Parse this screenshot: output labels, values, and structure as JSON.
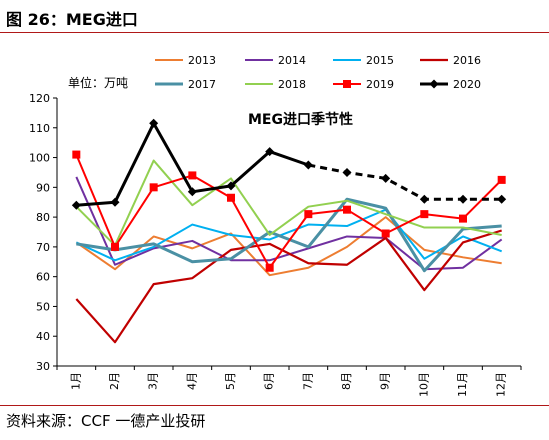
{
  "figure": {
    "title": "图 26：MEG进口",
    "source": "资料来源：CCF 一德产业投研"
  },
  "chart_data": {
    "type": "line",
    "title": "MEG进口季节性",
    "unit_label": "单位：万吨",
    "categories": [
      "1月",
      "2月",
      "3月",
      "4月",
      "5月",
      "6月",
      "7月",
      "8月",
      "9月",
      "10月",
      "11月",
      "12月"
    ],
    "ylim": [
      30,
      120
    ],
    "yticks": [
      30,
      40,
      50,
      60,
      70,
      80,
      90,
      100,
      110,
      120
    ],
    "legend_position": "top",
    "series": [
      {
        "name": "2013",
        "color": "#ed7d31",
        "width": 2,
        "values": [
          71.5,
          62.5,
          73.5,
          69.5,
          74.5,
          60.5,
          63,
          70,
          80,
          69,
          66.5,
          64.5
        ]
      },
      {
        "name": "2014",
        "color": "#7030a0",
        "width": 2,
        "values": [
          93.5,
          64,
          69.5,
          72,
          65.5,
          65.5,
          69.5,
          73.5,
          73,
          62.5,
          63,
          72.5
        ]
      },
      {
        "name": "2015",
        "color": "#00b0f0",
        "width": 2,
        "values": [
          71.5,
          65.5,
          70,
          77.5,
          74,
          72.5,
          77.5,
          77,
          82.5,
          66,
          73.5,
          68.5
        ]
      },
      {
        "name": "2016",
        "color": "#c00000",
        "width": 2.2,
        "values": [
          52.5,
          38,
          57.5,
          59.5,
          69,
          71,
          64.5,
          64,
          73,
          55.5,
          71.5,
          75.5
        ]
      },
      {
        "name": "2017",
        "color": "#4a90a4",
        "width": 3,
        "values": [
          71,
          69,
          71,
          65,
          66,
          75,
          70,
          86,
          83,
          62,
          76,
          77
        ]
      },
      {
        "name": "2018",
        "color": "#92d050",
        "width": 2,
        "values": [
          83.5,
          70.5,
          99,
          84,
          93,
          74,
          83.5,
          85.5,
          81,
          76.5,
          76.5,
          74
        ]
      },
      {
        "name": "2019",
        "color": "#ff0000",
        "width": 2,
        "marker": "square",
        "values": [
          101,
          70,
          90,
          94,
          86.5,
          63,
          81,
          82.5,
          74.5,
          81,
          79.5,
          92.5
        ]
      },
      {
        "name": "2020",
        "color": "#000000",
        "width": 3,
        "marker": "diamond",
        "dashed_from_index": 6,
        "values": [
          84,
          85,
          111.5,
          88.5,
          90.5,
          102,
          97.5,
          95,
          93,
          86,
          86,
          86
        ]
      }
    ]
  }
}
